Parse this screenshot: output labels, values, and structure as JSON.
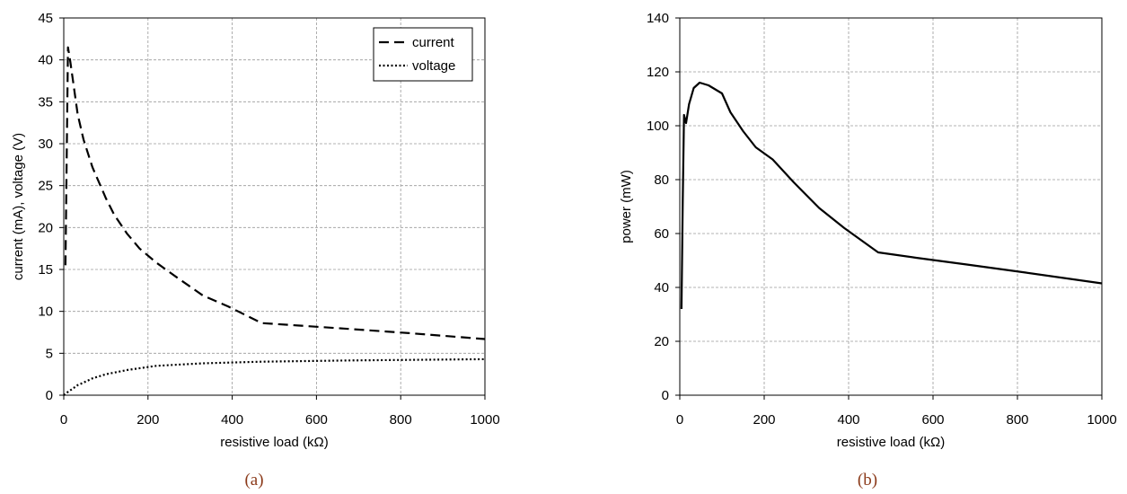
{
  "chart_data": [
    {
      "panel": "(a)",
      "type": "line",
      "xlabel": "resistive load (kΩ)",
      "ylabel": "current (mA), voltage (V)",
      "xlim": [
        0,
        1000
      ],
      "ylim": [
        0,
        45
      ],
      "xticks": [
        0,
        200,
        400,
        600,
        800,
        1000
      ],
      "yticks": [
        0,
        5,
        10,
        15,
        20,
        25,
        30,
        35,
        40,
        45
      ],
      "grid": true,
      "legend_position": "top-right",
      "series": [
        {
          "name": "current",
          "style": "dashed",
          "x": [
            4,
            10,
            15,
            22,
            33,
            47,
            68,
            100,
            120,
            150,
            180,
            220,
            270,
            330,
            390,
            470,
            560,
            680,
            820,
            1000
          ],
          "y": [
            15.5,
            41.5,
            40,
            37.5,
            33.5,
            30.5,
            27.2,
            23.5,
            21.5,
            19.3,
            17.5,
            15.8,
            14,
            11.9,
            10.6,
            8.6,
            8.3,
            7.9,
            7.4,
            6.7
          ]
        },
        {
          "name": "voltage",
          "style": "dotted",
          "x": [
            0,
            10,
            22,
            33,
            47,
            68,
            100,
            150,
            220,
            330,
            470,
            680,
            1000
          ],
          "y": [
            0,
            0.4,
            0.8,
            1.2,
            1.5,
            2.0,
            2.5,
            3.0,
            3.5,
            3.8,
            4.0,
            4.15,
            4.3
          ]
        }
      ]
    },
    {
      "panel": "(b)",
      "type": "line",
      "xlabel": "resistive load (kΩ)",
      "ylabel": "power (mW)",
      "xlim": [
        0,
        1000
      ],
      "ylim": [
        0,
        140
      ],
      "xticks": [
        0,
        200,
        400,
        600,
        800,
        1000
      ],
      "yticks": [
        0,
        20,
        40,
        60,
        80,
        100,
        120,
        140
      ],
      "grid": true,
      "series": [
        {
          "name": "power",
          "style": "solid",
          "x": [
            4,
            7,
            10,
            15,
            22,
            33,
            47,
            68,
            100,
            120,
            150,
            180,
            220,
            270,
            330,
            390,
            470,
            560,
            680,
            820,
            1000
          ],
          "y": [
            32,
            72,
            104,
            101,
            108,
            114,
            116,
            115,
            112,
            105,
            98,
            92,
            87.5,
            79,
            69.5,
            62,
            53,
            51,
            48.5,
            45.5,
            41.5
          ]
        }
      ]
    }
  ],
  "captions": [
    "(a)",
    "(b)"
  ]
}
